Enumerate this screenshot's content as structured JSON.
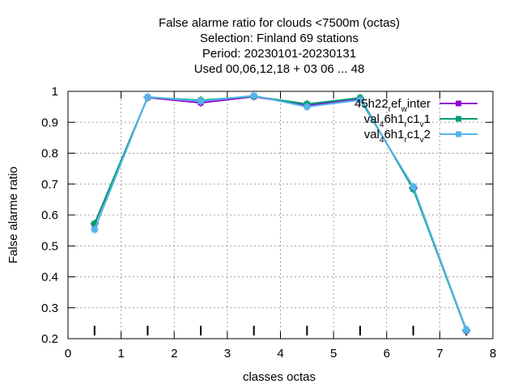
{
  "chart_data": {
    "type": "line",
    "title_lines": [
      "False alarme ratio  for clouds <7500m (octas)",
      "Selection: Finland     69 stations",
      "Period: 20230101-20230131",
      "Used  00,06,12,18  + 03 06 ... 48"
    ],
    "xlabel": "classes octas",
    "ylabel": "False alarme ratio",
    "xlim": [
      0,
      8
    ],
    "ylim": [
      0.2,
      1.0
    ],
    "x_ticks": [
      0,
      1,
      2,
      3,
      4,
      5,
      6,
      7,
      8
    ],
    "x_tick_labels": [
      "0",
      "1",
      "2",
      "3",
      "4",
      "5",
      "6",
      "7",
      "8"
    ],
    "y_ticks": [
      0.2,
      0.3,
      0.4,
      0.5,
      0.6,
      0.7,
      0.8,
      0.9,
      1.0
    ],
    "y_tick_labels": [
      "0.2",
      "0.3",
      "0.4",
      "0.5",
      "0.6",
      "0.7",
      "0.8",
      "0.9",
      "1"
    ],
    "grid": true,
    "legend_position": "top-right",
    "x": [
      0.5,
      1.5,
      2.5,
      3.5,
      4.5,
      5.5,
      6.5,
      7.5
    ],
    "series": [
      {
        "legend_parts": [
          [
            "45h22",
            ""
          ],
          [
            "r",
            "sub"
          ],
          [
            "ef",
            ""
          ],
          [
            "w",
            "sub"
          ],
          [
            "inter",
            ""
          ]
        ],
        "color": "#9400d3",
        "values": [
          0.571,
          0.98,
          0.963,
          0.983,
          0.955,
          0.975,
          0.688,
          0.226
        ]
      },
      {
        "legend_parts": [
          [
            "val",
            ""
          ],
          [
            "4",
            "sub"
          ],
          [
            "6h1",
            ""
          ],
          [
            "r",
            "sub"
          ],
          [
            "c1",
            ""
          ],
          [
            "v",
            "sub"
          ],
          [
            "1",
            ""
          ]
        ],
        "color": "#009e73",
        "values": [
          0.572,
          0.981,
          0.971,
          0.984,
          0.959,
          0.979,
          0.684,
          0.227
        ]
      },
      {
        "legend_parts": [
          [
            "val",
            ""
          ],
          [
            "4",
            "sub"
          ],
          [
            "6h1",
            ""
          ],
          [
            "r",
            "sub"
          ],
          [
            "c1",
            ""
          ],
          [
            "v",
            "sub"
          ],
          [
            "2",
            ""
          ]
        ],
        "color": "#56b4e9",
        "values": [
          0.553,
          0.982,
          0.968,
          0.986,
          0.95,
          0.972,
          0.692,
          0.229
        ]
      }
    ]
  }
}
